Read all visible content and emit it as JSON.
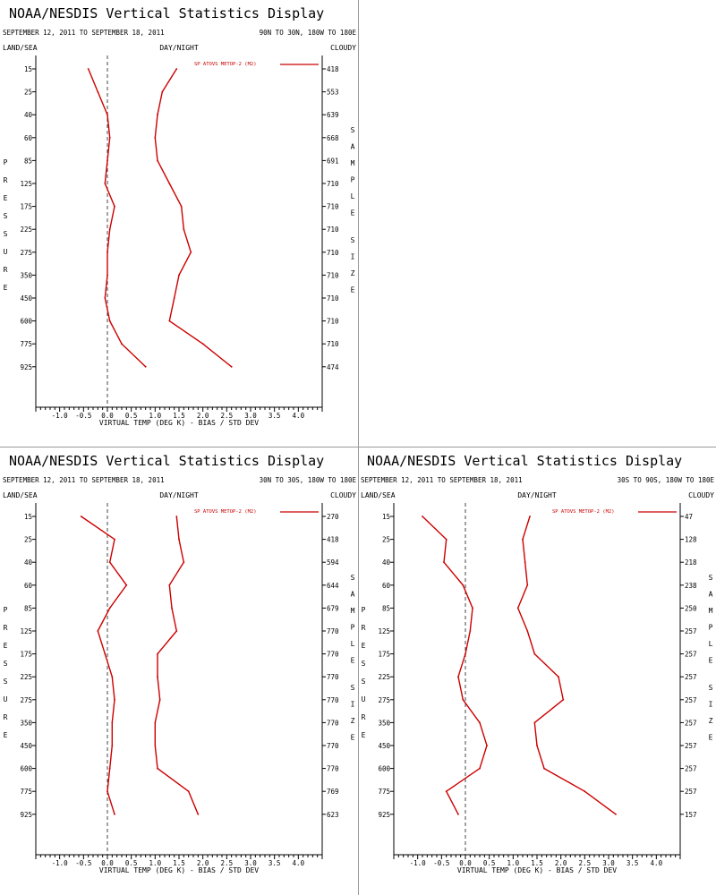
{
  "chart_data": [
    {
      "type": "line",
      "title": "NOAA/NESDIS Vertical Statistics Display",
      "date_range": "SEPTEMBER 12, 2011 TO SEPTEMBER 18, 2011",
      "region": "90N TO 30N, 180W TO 180E",
      "left_header": "LAND/SEA",
      "center_header": "DAY/NIGHT",
      "right_header": "CLOUDY",
      "ylabel": "PRESSURE",
      "right_label": "SAMPLE SIZE",
      "xlabel": "VIRTUAL TEMP (DEG K) - BIAS / STD DEV",
      "xlim": [
        -1.5,
        4.5
      ],
      "x_ticks": [
        "-1.0",
        "-0.5",
        "0.0",
        "0.5",
        "1.0",
        "1.5",
        "2.0",
        "2.5",
        "3.0",
        "3.5",
        "4.0"
      ],
      "pressure_levels": [
        "15",
        "25",
        "40",
        "60",
        "85",
        "125",
        "175",
        "225",
        "275",
        "350",
        "450",
        "600",
        "775",
        "925"
      ],
      "sample_size": [
        "418",
        "553",
        "639",
        "668",
        "691",
        "710",
        "710",
        "710",
        "710",
        "710",
        "710",
        "710",
        "710",
        "474"
      ],
      "legend": "SP ATOVS METOP-2 (M2)",
      "series": [
        {
          "values": [
            -0.4,
            -0.2,
            0.0,
            0.05,
            0.0,
            -0.05,
            0.15,
            0.05,
            0.0,
            0.0,
            -0.05,
            0.05,
            0.3,
            0.8
          ]
        },
        {
          "values": [
            1.45,
            1.15,
            1.05,
            1.0,
            1.05,
            1.3,
            1.55,
            1.6,
            1.75,
            1.5,
            1.4,
            1.3,
            2.0,
            2.6
          ]
        }
      ]
    },
    {
      "type": "line",
      "title": "NOAA/NESDIS Vertical Statistics Display",
      "date_range": "SEPTEMBER 12, 2011 TO SEPTEMBER 18, 2011",
      "region": "30N TO 30S, 180W TO 180E",
      "left_header": "LAND/SEA",
      "center_header": "DAY/NIGHT",
      "right_header": "CLOUDY",
      "ylabel": "PRESSURE",
      "right_label": "SAMPLE SIZE",
      "xlabel": "VIRTUAL TEMP (DEG K) - BIAS / STD DEV",
      "xlim": [
        -1.5,
        4.5
      ],
      "x_ticks": [
        "-1.0",
        "-0.5",
        "0.0",
        "0.5",
        "1.0",
        "1.5",
        "2.0",
        "2.5",
        "3.0",
        "3.5",
        "4.0"
      ],
      "pressure_levels": [
        "15",
        "25",
        "40",
        "60",
        "85",
        "125",
        "175",
        "225",
        "275",
        "350",
        "450",
        "600",
        "775",
        "925"
      ],
      "sample_size": [
        "270",
        "418",
        "594",
        "644",
        "679",
        "770",
        "770",
        "770",
        "770",
        "770",
        "770",
        "770",
        "769",
        "623"
      ],
      "legend": "SP ATOVS METOP-2 (M2)",
      "series": [
        {
          "values": [
            -0.55,
            0.15,
            0.05,
            0.4,
            0.05,
            -0.2,
            -0.05,
            0.1,
            0.15,
            0.1,
            0.1,
            0.05,
            0.0,
            0.15
          ]
        },
        {
          "values": [
            1.45,
            1.5,
            1.6,
            1.3,
            1.35,
            1.45,
            1.05,
            1.05,
            1.1,
            1.0,
            1.0,
            1.05,
            1.7,
            1.9
          ]
        }
      ]
    },
    {
      "type": "line",
      "title": "NOAA/NESDIS Vertical Statistics Display",
      "date_range": "SEPTEMBER 12, 2011 TO SEPTEMBER 18, 2011",
      "region": "30S TO 90S, 180W TO 180E",
      "left_header": "LAND/SEA",
      "center_header": "DAY/NIGHT",
      "right_header": "CLOUDY",
      "ylabel": "PRESSURE",
      "right_label": "SAMPLE SIZE",
      "xlabel": "VIRTUAL TEMP (DEG K) - BIAS / STD DEV",
      "xlim": [
        -1.5,
        4.5
      ],
      "x_ticks": [
        "-1.0",
        "-0.5",
        "0.0",
        "0.5",
        "1.0",
        "1.5",
        "2.0",
        "2.5",
        "3.0",
        "3.5",
        "4.0"
      ],
      "pressure_levels": [
        "15",
        "25",
        "40",
        "60",
        "85",
        "125",
        "175",
        "225",
        "275",
        "350",
        "450",
        "600",
        "775",
        "925"
      ],
      "sample_size": [
        "47",
        "128",
        "218",
        "238",
        "250",
        "257",
        "257",
        "257",
        "257",
        "257",
        "257",
        "257",
        "257",
        "157"
      ],
      "legend": "SP ATOVS METOP-2 (M2)",
      "series": [
        {
          "values": [
            -0.9,
            -0.4,
            -0.45,
            -0.05,
            0.15,
            0.1,
            0.0,
            -0.15,
            -0.05,
            0.3,
            0.45,
            0.3,
            -0.4,
            -0.15
          ]
        },
        {
          "values": [
            1.35,
            1.2,
            1.25,
            1.3,
            1.1,
            1.3,
            1.45,
            1.95,
            2.05,
            1.45,
            1.5,
            1.65,
            2.5,
            3.15
          ]
        }
      ]
    }
  ]
}
